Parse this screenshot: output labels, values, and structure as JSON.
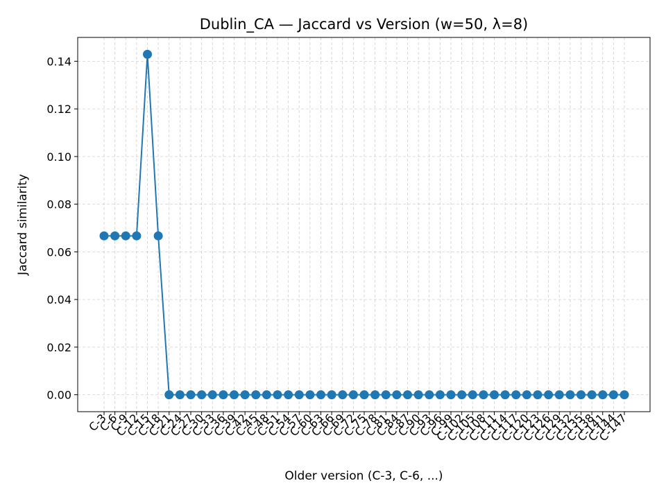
{
  "chart_data": {
    "type": "line",
    "title": "Dublin_CA — Jaccard vs Version (w=50, λ=8)",
    "xlabel": "Older version (C-3, C-6, ...)",
    "ylabel": "Jaccard similarity",
    "categories": [
      "C-3",
      "C-6",
      "C-9",
      "C-12",
      "C-15",
      "C-18",
      "C-21",
      "C-24",
      "C-27",
      "C-30",
      "C-33",
      "C-36",
      "C-39",
      "C-42",
      "C-45",
      "C-48",
      "C-51",
      "C-54",
      "C-57",
      "C-60",
      "C-63",
      "C-66",
      "C-69",
      "C-72",
      "C-75",
      "C-78",
      "C-81",
      "C-84",
      "C-87",
      "C-90",
      "C-93",
      "C-96",
      "C-99",
      "C-102",
      "C-105",
      "C-108",
      "C-111",
      "C-114",
      "C-117",
      "C-120",
      "C-123",
      "C-126",
      "C-129",
      "C-132",
      "C-135",
      "C-138",
      "C-141",
      "C-144",
      "C-147"
    ],
    "series": [
      {
        "values": [
          0.0667,
          0.0667,
          0.0667,
          0.0667,
          0.1429,
          0.0667,
          0,
          0,
          0,
          0,
          0,
          0,
          0,
          0,
          0,
          0,
          0,
          0,
          0,
          0,
          0,
          0,
          0,
          0,
          0,
          0,
          0,
          0,
          0,
          0,
          0,
          0,
          0,
          0,
          0,
          0,
          0,
          0,
          0,
          0,
          0,
          0,
          0,
          0,
          0,
          0,
          0,
          0,
          0
        ]
      }
    ],
    "yticks": [
      0.0,
      0.02,
      0.04,
      0.06,
      0.08,
      0.1,
      0.12,
      0.14
    ],
    "ytick_labels": [
      "0.00",
      "0.02",
      "0.04",
      "0.06",
      "0.08",
      "0.10",
      "0.12",
      "0.14"
    ],
    "ylim": [
      -0.0071,
      0.15
    ],
    "grid": true,
    "legend": "none",
    "colors": {
      "line": "#1f77b4",
      "grid": "#b0b0b0",
      "axes": "#000000"
    }
  }
}
